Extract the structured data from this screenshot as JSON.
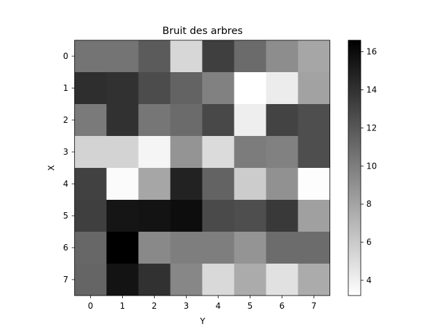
{
  "chart_data": {
    "type": "heatmap",
    "title": "Bruit des arbres",
    "xlabel": "Y",
    "ylabel": "X",
    "colormap": "gray_r",
    "x_categories": [
      "0",
      "1",
      "2",
      "3",
      "4",
      "5",
      "6",
      "7"
    ],
    "y_categories": [
      "0",
      "1",
      "2",
      "3",
      "4",
      "5",
      "6",
      "7"
    ],
    "values": [
      [
        10.5,
        10.5,
        11.8,
        5.3,
        13.3,
        11.0,
        9.2,
        7.9
      ],
      [
        14.2,
        14.0,
        12.6,
        11.4,
        9.8,
        3.2,
        4.2,
        8.1
      ],
      [
        10.2,
        14.0,
        10.4,
        11.0,
        12.8,
        4.1,
        13.1,
        12.5
      ],
      [
        5.5,
        5.5,
        3.7,
        8.8,
        5.1,
        10.1,
        9.8,
        12.5
      ],
      [
        13.2,
        3.4,
        7.9,
        14.8,
        11.4,
        5.9,
        9.0,
        3.3
      ],
      [
        13.3,
        15.5,
        15.6,
        15.9,
        12.7,
        12.5,
        13.6,
        8.2
      ],
      [
        11.2,
        16.6,
        9.4,
        10.0,
        10.0,
        8.8,
        10.9,
        10.9
      ],
      [
        11.3,
        15.6,
        14.0,
        9.5,
        5.2,
        7.6,
        4.8,
        7.6
      ]
    ],
    "colorbar": {
      "min": 3.2,
      "max": 16.6,
      "ticks": [
        4,
        6,
        8,
        10,
        12,
        14,
        16
      ]
    },
    "grid": false
  }
}
